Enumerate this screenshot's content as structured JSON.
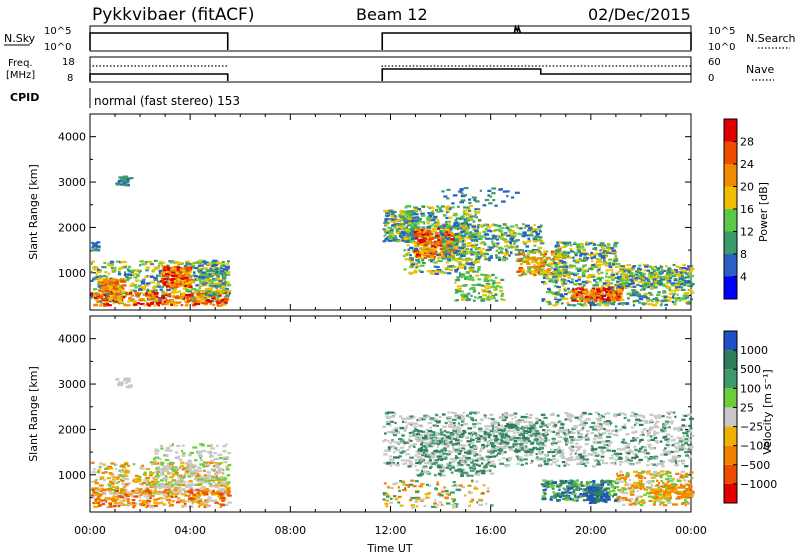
{
  "header": {
    "title": "Pykkvibaer (fitACF)",
    "beam": "Beam 12",
    "date": "02/Dec/2015"
  },
  "mode_label": "normal (fast stereo) 153",
  "chart_data": [
    {
      "type": "line",
      "title": "",
      "left_label": "N.Sky",
      "right_label": "N.Search",
      "left_ticks": [
        "10^5",
        "10^0"
      ],
      "right_ticks": [
        "10^5",
        "10^0"
      ],
      "segments": [
        {
          "x": [
            "00:00",
            "05:30"
          ],
          "level": "10^5"
        },
        {
          "x": [
            "11:40",
            "24:00"
          ],
          "level": "10^5"
        }
      ]
    },
    {
      "type": "line",
      "title": "",
      "left_label_line1": "Freq.",
      "left_label_line2": "[MHz]",
      "right_label": "Nave",
      "left_ticks": [
        "18",
        "8"
      ],
      "right_ticks": [
        "60",
        "0"
      ],
      "series": [
        {
          "name": "Freq",
          "segments": [
            [
              0,
              5.5,
              9.5
            ],
            [
              11.67,
              18.0,
              14.5
            ],
            [
              18.0,
              24.0,
              9.5
            ]
          ]
        },
        {
          "name": "Nave",
          "segments": [
            [
              0,
              5.5,
              14.0
            ],
            [
              11.67,
              24.0,
              14.0
            ]
          ]
        }
      ]
    },
    {
      "type": "heatmap",
      "title": "Power",
      "ylabel": "Slant Range [km]",
      "yticks": [
        "4000",
        "3000",
        "2000",
        "1000"
      ],
      "ylim": [
        180,
        4500
      ],
      "colorbar_label": "Power [dB]",
      "colorbar_ticks": [
        "28",
        "24",
        "20",
        "16",
        "12",
        "8",
        "4"
      ],
      "colorbar_colors": [
        "#0000ff",
        "#2a5fc6",
        "#3a9a6a",
        "#5cc84a",
        "#f0c000",
        "#f08a00",
        "#f04c00",
        "#e00000"
      ]
    },
    {
      "type": "heatmap",
      "title": "Velocity",
      "ylabel": "Slant Range [km]",
      "yticks": [
        "4000",
        "3000",
        "2000",
        "1000"
      ],
      "ylim": [
        180,
        4500
      ],
      "colorbar_label": "Velocity [m s⁻¹]",
      "colorbar_ticks": [
        "1000",
        "500",
        "100",
        "25",
        "−25",
        "−100",
        "−500",
        "−1000"
      ],
      "colorbar_colors": [
        "#2050c8",
        "#2f7d5a",
        "#3e9a6a",
        "#6ccc3a",
        "#c8c8c8",
        "#f0b000",
        "#f08000",
        "#ee4a00",
        "#e00000"
      ],
      "xlabel": "Time UT",
      "xticks": [
        "00:00",
        "04:00",
        "08:00",
        "12:00",
        "16:00",
        "20:00",
        "00:00"
      ],
      "xlim": [
        0,
        24
      ]
    }
  ],
  "colors": {
    "frame": "#000000",
    "grey_scatter": "#c8c8c8"
  }
}
